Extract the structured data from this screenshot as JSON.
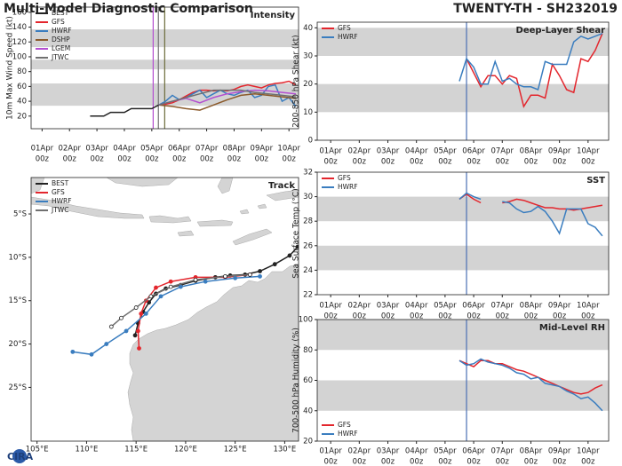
{
  "title": "Multi-Model Diagnostic Comparison",
  "storm": "TWENTY-TH - SH232019",
  "logo": "CIRA",
  "chart_data": [
    {
      "type": "line",
      "title": "Intensity",
      "ylabel": "10m Max Wind Speed (kt)",
      "legend": "upper left",
      "xlim": [
        -0.4,
        9.35
      ],
      "ylim": [
        3,
        167
      ],
      "yticks": [
        20,
        40,
        60,
        80,
        100,
        120,
        140,
        160
      ],
      "xticks": [
        {
          "value": 0,
          "label": [
            "01Apr",
            "00z"
          ]
        },
        {
          "value": 1,
          "label": [
            "02Apr",
            "00z"
          ]
        },
        {
          "value": 2,
          "label": [
            "03Apr",
            "00z"
          ]
        },
        {
          "value": 3,
          "label": [
            "04Apr",
            "00z"
          ]
        },
        {
          "value": 4,
          "label": [
            "05Apr",
            "00z"
          ]
        },
        {
          "value": 5,
          "label": [
            "06Apr",
            "00z"
          ]
        },
        {
          "value": 6,
          "label": [
            "07Apr",
            "00z"
          ]
        },
        {
          "value": 7,
          "label": [
            "08Apr",
            "00z"
          ]
        },
        {
          "value": 8,
          "label": [
            "09Apr",
            "00z"
          ]
        },
        {
          "value": 9,
          "label": [
            "10Apr",
            "00z"
          ]
        }
      ],
      "bands": [
        [
          34,
          64
        ],
        [
          83,
          96
        ],
        [
          113,
          137
        ]
      ],
      "vlines": [
        4.05,
        4.24,
        4.47
      ],
      "vline_colors": [
        "#b44fd0",
        "#707070",
        "#6b6b3a"
      ],
      "series": [
        {
          "name": "BEST",
          "color": "#222222",
          "x": [
            1.75,
            2.0,
            2.25,
            2.5,
            2.75,
            3.0,
            3.25,
            3.5,
            3.75,
            4.0,
            4.25
          ],
          "values": [
            20,
            20,
            20,
            25,
            25,
            25,
            30,
            30,
            30,
            30,
            35
          ]
        },
        {
          "name": "GFS",
          "color": "#e3262d",
          "x": [
            4.25,
            4.5,
            4.75,
            5.0,
            5.25,
            5.5,
            5.75,
            6.0,
            6.25,
            6.5,
            6.75,
            7.0,
            7.25,
            7.5,
            7.75,
            8.0,
            8.25,
            8.5,
            8.75,
            9.0,
            9.25
          ],
          "values": [
            35,
            36,
            38,
            42,
            47,
            52,
            55,
            55,
            54,
            55,
            54,
            56,
            60,
            62,
            60,
            58,
            62,
            64,
            65,
            67,
            62
          ]
        },
        {
          "name": "HWRF",
          "color": "#3a7dbf",
          "x": [
            4.25,
            4.5,
            4.75,
            5.0,
            5.25,
            5.5,
            5.75,
            6.0,
            6.25,
            6.5,
            6.75,
            7.0,
            7.25,
            7.5,
            7.75,
            8.0,
            8.25,
            8.5,
            8.75,
            9.0,
            9.25
          ],
          "values": [
            35,
            40,
            48,
            42,
            45,
            50,
            55,
            45,
            50,
            55,
            50,
            48,
            52,
            55,
            45,
            48,
            60,
            62,
            40,
            45,
            33
          ]
        },
        {
          "name": "DSHP",
          "color": "#8b5a2b",
          "x": [
            4.25,
            4.75,
            5.25,
            5.75,
            6.25,
            6.75,
            7.25,
            7.75,
            8.25,
            8.75,
            9.25
          ],
          "values": [
            35,
            33,
            30,
            28,
            35,
            42,
            48,
            50,
            48,
            46,
            44
          ]
        },
        {
          "name": "LGEM",
          "color": "#b44fd0",
          "x": [
            4.25,
            4.75,
            5.25,
            5.75,
            6.25,
            6.75,
            7.25,
            7.75,
            8.25,
            8.75,
            9.25
          ],
          "values": [
            35,
            40,
            44,
            38,
            45,
            50,
            53,
            55,
            54,
            52,
            50
          ]
        },
        {
          "name": "JTWC",
          "color": "#707070",
          "x": [
            4.25,
            4.75,
            5.25,
            5.75,
            6.25,
            6.75,
            7.25,
            7.75,
            8.25,
            8.75,
            9.25
          ],
          "values": [
            35,
            40,
            45,
            50,
            55,
            55,
            55,
            52,
            50,
            48,
            46
          ]
        }
      ]
    },
    {
      "type": "track",
      "title": "Track",
      "legend": "upper left",
      "xlim": [
        104.4,
        131.4
      ],
      "ylim": [
        -31.2,
        -0.8
      ],
      "xticks": [
        {
          "value": 105,
          "label": "105°E"
        },
        {
          "value": 110,
          "label": "110°E"
        },
        {
          "value": 115,
          "label": "115°E"
        },
        {
          "value": 120,
          "label": "120°E"
        },
        {
          "value": 125,
          "label": "125°E"
        },
        {
          "value": 130,
          "label": "130°E"
        }
      ],
      "yticks": [
        {
          "value": -5,
          "label": "5°S"
        },
        {
          "value": -10,
          "label": "10°S"
        },
        {
          "value": -15,
          "label": "15°S"
        },
        {
          "value": -20,
          "label": "20°S"
        },
        {
          "value": -25,
          "label": "25°S"
        }
      ],
      "series": [
        {
          "name": "BEST",
          "color": "#222222",
          "marker": "filled",
          "lon": [
            131.3,
            130.5,
            129,
            127.5,
            126,
            124.5,
            123,
            121,
            119.5,
            118,
            117,
            116.3,
            115.7,
            115.2,
            114.9
          ],
          "lat": [
            -8.8,
            -9.8,
            -10.8,
            -11.6,
            -12,
            -12.1,
            -12.3,
            -12.7,
            -13.2,
            -13.6,
            -14.2,
            -15.2,
            -16.3,
            -17.6,
            -19
          ]
        },
        {
          "name": "GFS",
          "color": "#e3262d",
          "marker": "filled",
          "lon": [
            126.5,
            124,
            121,
            118.5,
            117,
            116,
            115.5,
            115.2,
            115.3
          ],
          "lat": [
            -12,
            -12.3,
            -12.3,
            -12.8,
            -13.5,
            -15,
            -16.5,
            -18.5,
            -20.5
          ]
        },
        {
          "name": "HWRF",
          "color": "#3a7dbf",
          "marker": "filled",
          "lon": [
            127.5,
            125,
            122,
            119.5,
            117.5,
            116,
            114,
            112,
            110.5,
            108.6
          ],
          "lat": [
            -12.2,
            -12.4,
            -12.8,
            -13.4,
            -14.5,
            -16.5,
            -18.5,
            -20,
            -21.2,
            -20.9
          ]
        },
        {
          "name": "JTWC",
          "color": "#707070",
          "marker": "open",
          "lon": [
            126.5,
            124,
            121,
            118.5,
            116.5,
            115,
            113.5,
            112.5
          ],
          "lat": [
            -12,
            -12.2,
            -12.6,
            -13.4,
            -14.5,
            -15.8,
            -17,
            -18
          ]
        }
      ]
    },
    {
      "type": "line",
      "title": "Deep-Layer Shear",
      "ylabel": "200-850 hPa Shear (kt)",
      "legend": "upper left",
      "xlim": [
        -0.47,
        9.72
      ],
      "ylim": [
        0,
        42
      ],
      "yticks": [
        0,
        10,
        20,
        30,
        40
      ],
      "xticks": [
        {
          "value": 0,
          "label": [
            "01Apr",
            "00z"
          ]
        },
        {
          "value": 1,
          "label": [
            "02Apr",
            "00z"
          ]
        },
        {
          "value": 2,
          "label": [
            "03Apr",
            "00z"
          ]
        },
        {
          "value": 3,
          "label": [
            "04Apr",
            "00z"
          ]
        },
        {
          "value": 4,
          "label": [
            "05Apr",
            "00z"
          ]
        },
        {
          "value": 5,
          "label": [
            "06Apr",
            "00z"
          ]
        },
        {
          "value": 6,
          "label": [
            "07Apr",
            "00z"
          ]
        },
        {
          "value": 7,
          "label": [
            "08Apr",
            "00z"
          ]
        },
        {
          "value": 8,
          "label": [
            "09Apr",
            "00z"
          ]
        },
        {
          "value": 9,
          "label": [
            "10Apr",
            "00z"
          ]
        }
      ],
      "bands": [
        [
          10,
          20
        ],
        [
          30,
          40
        ]
      ],
      "vlines": [
        4.75
      ],
      "vline_colors": [
        "#4a6fb3"
      ],
      "series": [
        {
          "name": "GFS",
          "color": "#e3262d",
          "x": [
            4.75,
            5.0,
            5.25,
            5.5,
            5.75,
            6.0,
            6.25,
            6.5,
            6.75,
            7.0,
            7.25,
            7.5,
            7.75,
            8.0,
            8.25,
            8.5,
            8.75,
            9.0,
            9.25,
            9.5
          ],
          "values": [
            29,
            24,
            19,
            23,
            23,
            20,
            23,
            22,
            12,
            16,
            16,
            15,
            27,
            23,
            18,
            17,
            29,
            28,
            32,
            38
          ]
        },
        {
          "name": "HWRF",
          "color": "#3a7dbf",
          "x": [
            4.5,
            4.75,
            5.0,
            5.25,
            5.5,
            5.75,
            6.0,
            6.25,
            6.5,
            6.75,
            7.0,
            7.25,
            7.5,
            7.75,
            8.0,
            8.25,
            8.5,
            8.75,
            9.0,
            9.25,
            9.5
          ],
          "values": [
            21,
            29,
            26,
            20,
            20,
            28,
            21,
            22,
            20,
            19,
            19,
            18,
            28,
            27,
            27,
            27,
            35,
            37,
            36,
            37,
            38
          ]
        }
      ]
    },
    {
      "type": "line",
      "title": "SST",
      "ylabel": "Sea Surface Temp (°C)",
      "legend": "upper left",
      "xlim": [
        -0.47,
        9.72
      ],
      "ylim": [
        22,
        32
      ],
      "yticks": [
        22,
        24,
        26,
        28,
        30,
        32
      ],
      "xticks": [
        {
          "value": 0,
          "label": [
            "01Apr",
            "00z"
          ]
        },
        {
          "value": 1,
          "label": [
            "02Apr",
            "00z"
          ]
        },
        {
          "value": 2,
          "label": [
            "03Apr",
            "00z"
          ]
        },
        {
          "value": 3,
          "label": [
            "04Apr",
            "00z"
          ]
        },
        {
          "value": 4,
          "label": [
            "05Apr",
            "00z"
          ]
        },
        {
          "value": 5,
          "label": [
            "06Apr",
            "00z"
          ]
        },
        {
          "value": 6,
          "label": [
            "07Apr",
            "00z"
          ]
        },
        {
          "value": 7,
          "label": [
            "08Apr",
            "00z"
          ]
        },
        {
          "value": 8,
          "label": [
            "09Apr",
            "00z"
          ]
        },
        {
          "value": 9,
          "label": [
            "10Apr",
            "00z"
          ]
        }
      ],
      "bands": [
        [
          24,
          26
        ],
        [
          28,
          30
        ]
      ],
      "vlines": [
        4.75
      ],
      "vline_colors": [
        "#4a6fb3"
      ],
      "series": [
        {
          "name": "GFS",
          "color": "#e3262d",
          "x": [
            4.5,
            4.75,
            5.0,
            5.25,
            5.5,
            5.75,
            6.0,
            6.25,
            6.5,
            6.75,
            7.0,
            7.25,
            7.5,
            7.75,
            8.0,
            8.25,
            8.5,
            8.75,
            9.0,
            9.25,
            9.5
          ],
          "values": [
            29.8,
            30.2,
            29.8,
            29.5,
            null,
            null,
            29.5,
            29.6,
            29.8,
            29.7,
            29.5,
            29.3,
            29.1,
            29.1,
            29.0,
            29.0,
            28.9,
            29.0,
            29.1,
            29.2,
            29.3
          ]
        },
        {
          "name": "HWRF",
          "color": "#3a7dbf",
          "x": [
            4.5,
            4.75,
            5.0,
            5.25,
            5.5,
            5.75,
            6.0,
            6.25,
            6.5,
            6.75,
            7.0,
            7.25,
            7.5,
            7.75,
            8.0,
            8.25,
            8.5,
            8.75,
            9.0,
            9.25,
            9.5
          ],
          "values": [
            29.8,
            30.3,
            30.0,
            29.8,
            null,
            null,
            29.6,
            29.5,
            29.0,
            28.7,
            28.8,
            29.2,
            28.8,
            28.0,
            27.0,
            29.0,
            29.0,
            29.0,
            27.8,
            27.5,
            26.8
          ]
        }
      ]
    },
    {
      "type": "line",
      "title": "Mid-Level RH",
      "ylabel": "700-500 hPa Humidity (%)",
      "legend": "lower left",
      "xlim": [
        -0.47,
        9.72
      ],
      "ylim": [
        20,
        100
      ],
      "yticks": [
        20,
        40,
        60,
        80,
        100
      ],
      "xticks": [
        {
          "value": 0,
          "label": [
            "01Apr",
            "00z"
          ]
        },
        {
          "value": 1,
          "label": [
            "02Apr",
            "00z"
          ]
        },
        {
          "value": 2,
          "label": [
            "03Apr",
            "00z"
          ]
        },
        {
          "value": 3,
          "label": [
            "04Apr",
            "00z"
          ]
        },
        {
          "value": 4,
          "label": [
            "05Apr",
            "00z"
          ]
        },
        {
          "value": 5,
          "label": [
            "06Apr",
            "00z"
          ]
        },
        {
          "value": 6,
          "label": [
            "07Apr",
            "00z"
          ]
        },
        {
          "value": 7,
          "label": [
            "08Apr",
            "00z"
          ]
        },
        {
          "value": 8,
          "label": [
            "09Apr",
            "00z"
          ]
        },
        {
          "value": 9,
          "label": [
            "10Apr",
            "00z"
          ]
        }
      ],
      "bands": [
        [
          40,
          60
        ],
        [
          80,
          100
        ]
      ],
      "vlines": [
        4.75
      ],
      "vline_colors": [
        "#4a6fb3"
      ],
      "series": [
        {
          "name": "GFS",
          "color": "#e3262d",
          "x": [
            4.5,
            4.75,
            5.0,
            5.25,
            5.5,
            5.75,
            6.0,
            6.25,
            6.5,
            6.75,
            7.0,
            7.25,
            7.5,
            7.75,
            8.0,
            8.25,
            8.5,
            8.75,
            9.0,
            9.25,
            9.5
          ],
          "values": [
            73,
            71,
            69,
            73,
            73,
            71,
            71,
            69,
            67,
            66,
            64,
            62,
            60,
            58,
            56,
            54,
            52,
            51,
            52,
            55,
            57
          ]
        },
        {
          "name": "HWRF",
          "color": "#3a7dbf",
          "x": [
            4.5,
            4.75,
            5.0,
            5.25,
            5.5,
            5.75,
            6.0,
            6.25,
            6.5,
            6.75,
            7.0,
            7.25,
            7.5,
            7.75,
            8.0,
            8.25,
            8.5,
            8.75,
            9.0,
            9.25,
            9.5
          ],
          "values": [
            73,
            70,
            71,
            74,
            72,
            71,
            70,
            68,
            65,
            64,
            61,
            62,
            58,
            57,
            56,
            53,
            51,
            48,
            49,
            45,
            40
          ]
        }
      ]
    }
  ]
}
